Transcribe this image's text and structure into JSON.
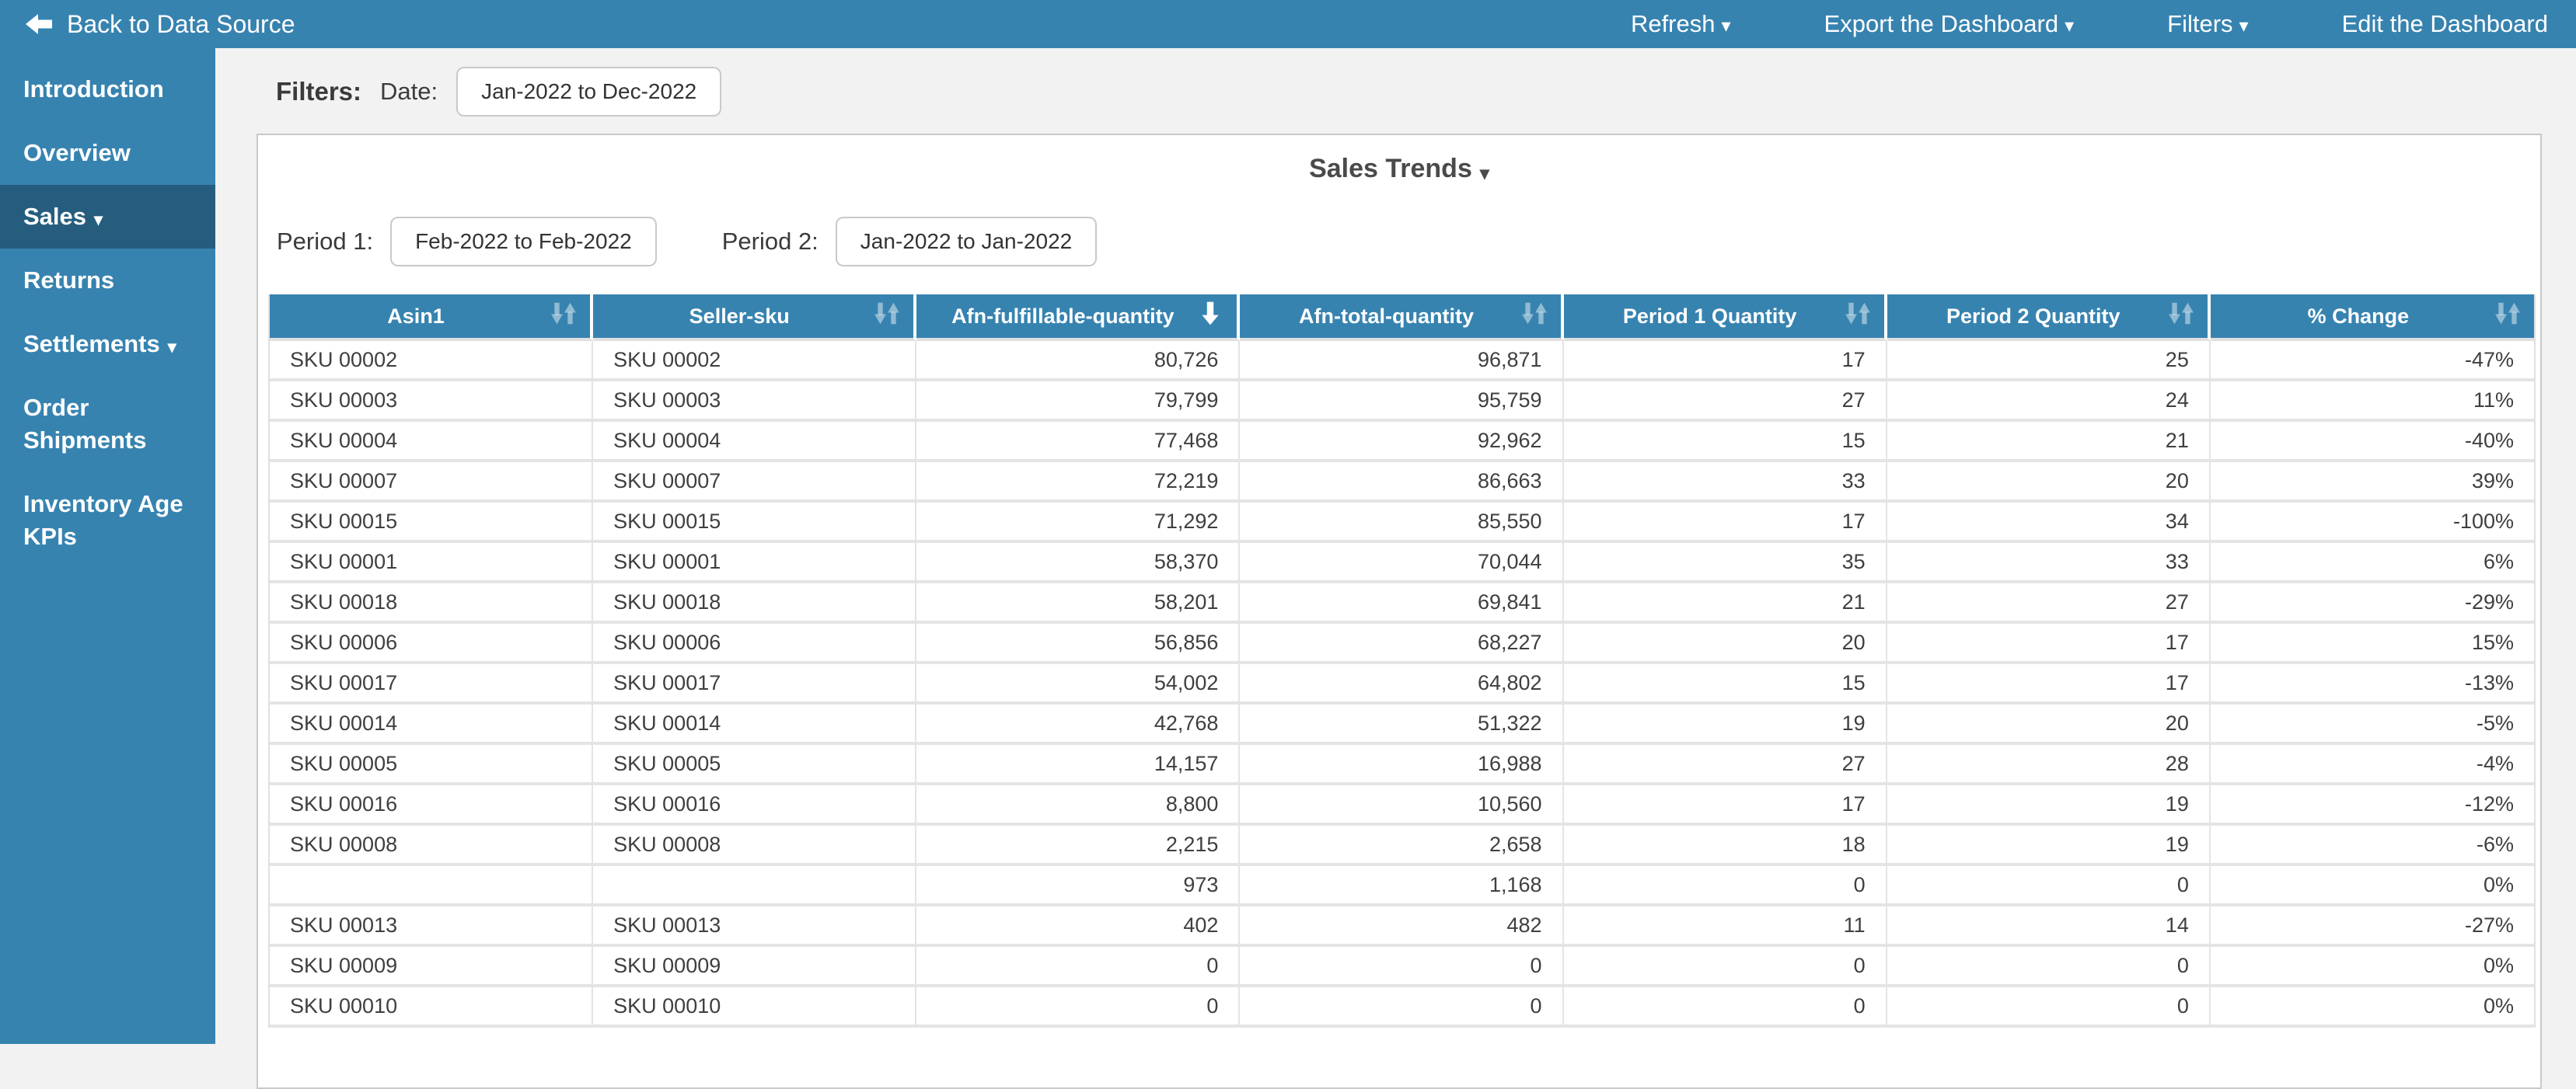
{
  "colors": {
    "accent_blue": "#3783b0",
    "active_item_blue": "#265d7e",
    "page_background": "#f2f2f2",
    "row_divider": "#e4e4e4"
  },
  "navbar": {
    "back_label": "Back to Data Source",
    "items": [
      {
        "label": "Refresh",
        "caret": true
      },
      {
        "label": "Export the Dashboard",
        "caret": true
      },
      {
        "label": "Filters",
        "caret": true
      },
      {
        "label": "Edit the Dashboard",
        "caret": false
      }
    ]
  },
  "sidebar": {
    "items": [
      {
        "label": "Introduction",
        "caret": false,
        "active": false
      },
      {
        "label": "Overview",
        "caret": false,
        "active": false
      },
      {
        "label": "Sales",
        "caret": true,
        "active": true
      },
      {
        "label": "Returns",
        "caret": false,
        "active": false
      },
      {
        "label": "Settlements",
        "caret": true,
        "active": false
      },
      {
        "label": "Order Shipments",
        "caret": false,
        "active": false
      },
      {
        "label": "Inventory Age KPIs",
        "caret": false,
        "active": false
      }
    ]
  },
  "filters": {
    "label": "Filters:",
    "date_label": "Date:",
    "date_value": "Jan-2022 to Dec-2022"
  },
  "card": {
    "title": "Sales Trends",
    "period1_label": "Period 1:",
    "period1_value": "Feb-2022 to Feb-2022",
    "period2_label": "Period 2:",
    "period2_value": "Jan-2022 to Jan-2022"
  },
  "table": {
    "columns": [
      {
        "label": "Asin1",
        "sort": "none"
      },
      {
        "label": "Seller-sku",
        "sort": "none"
      },
      {
        "label": "Afn-fulfillable-quantity",
        "sort": "desc"
      },
      {
        "label": "Afn-total-quantity",
        "sort": "none"
      },
      {
        "label": "Period 1 Quantity",
        "sort": "none"
      },
      {
        "label": "Period 2 Quantity",
        "sort": "none"
      },
      {
        "label": "% Change",
        "sort": "none"
      }
    ],
    "rows": [
      [
        "SKU 00002",
        "SKU 00002",
        "80,726",
        "96,871",
        "17",
        "25",
        "-47%"
      ],
      [
        "SKU 00003",
        "SKU 00003",
        "79,799",
        "95,759",
        "27",
        "24",
        "11%"
      ],
      [
        "SKU 00004",
        "SKU 00004",
        "77,468",
        "92,962",
        "15",
        "21",
        "-40%"
      ],
      [
        "SKU 00007",
        "SKU 00007",
        "72,219",
        "86,663",
        "33",
        "20",
        "39%"
      ],
      [
        "SKU 00015",
        "SKU 00015",
        "71,292",
        "85,550",
        "17",
        "34",
        "-100%"
      ],
      [
        "SKU 00001",
        "SKU 00001",
        "58,370",
        "70,044",
        "35",
        "33",
        "6%"
      ],
      [
        "SKU 00018",
        "SKU 00018",
        "58,201",
        "69,841",
        "21",
        "27",
        "-29%"
      ],
      [
        "SKU 00006",
        "SKU 00006",
        "56,856",
        "68,227",
        "20",
        "17",
        "15%"
      ],
      [
        "SKU 00017",
        "SKU 00017",
        "54,002",
        "64,802",
        "15",
        "17",
        "-13%"
      ],
      [
        "SKU 00014",
        "SKU 00014",
        "42,768",
        "51,322",
        "19",
        "20",
        "-5%"
      ],
      [
        "SKU 00005",
        "SKU 00005",
        "14,157",
        "16,988",
        "27",
        "28",
        "-4%"
      ],
      [
        "SKU 00016",
        "SKU 00016",
        "8,800",
        "10,560",
        "17",
        "19",
        "-12%"
      ],
      [
        "SKU 00008",
        "SKU 00008",
        "2,215",
        "2,658",
        "18",
        "19",
        "-6%"
      ],
      [
        "",
        "",
        "973",
        "1,168",
        "0",
        "0",
        "0%"
      ],
      [
        "SKU 00013",
        "SKU 00013",
        "402",
        "482",
        "11",
        "14",
        "-27%"
      ],
      [
        "SKU 00009",
        "SKU 00009",
        "0",
        "0",
        "0",
        "0",
        "0%"
      ],
      [
        "SKU 00010",
        "SKU 00010",
        "0",
        "0",
        "0",
        "0",
        "0%"
      ]
    ]
  }
}
